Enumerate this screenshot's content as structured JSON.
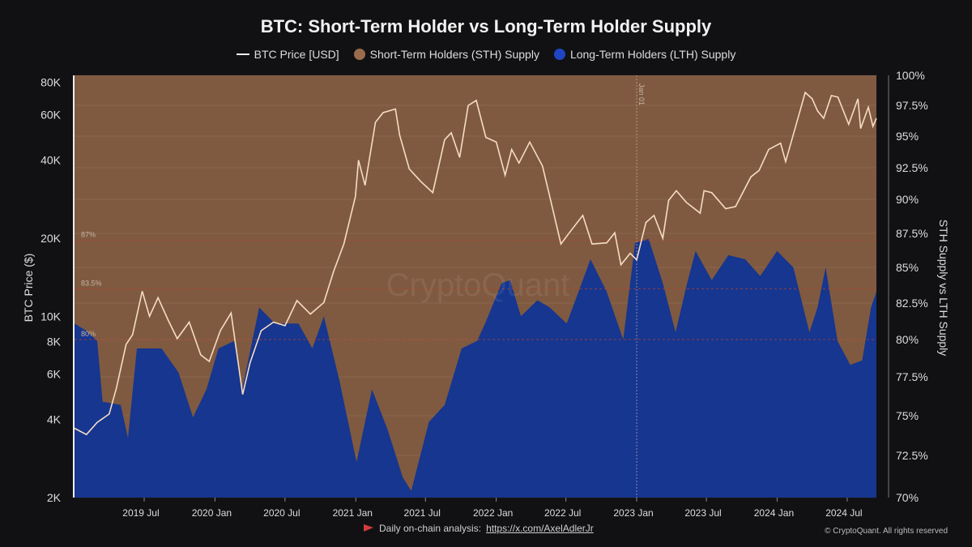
{
  "chart_data": {
    "type": "area",
    "title": "BTC: Short-Term Holder vs Long-Term Holder Supply",
    "legend": [
      "BTC Price [USD]",
      "Short-Term Holders (STH) Supply",
      "Long-Term Holders (LTH) Supply"
    ],
    "legend_placement": "top-center",
    "colors": {
      "price": "#f6dcc4",
      "sth": "#7f5a40",
      "lth": "#16368f",
      "ref_line": "#b5402f",
      "background": "#111114"
    },
    "ylabel_left": "BTC Price ($)",
    "ylabel_right": "STH Supply vs LTH Supply",
    "y_left_scale": "log",
    "y_left_ticks": [
      "2K",
      "4K",
      "6K",
      "8K",
      "10K",
      "20K",
      "40K",
      "60K",
      "80K"
    ],
    "y_left_tick_values": [
      2000,
      4000,
      6000,
      8000,
      10000,
      20000,
      40000,
      60000,
      80000
    ],
    "y_right_ticks": [
      "70%",
      "72.5%",
      "75%",
      "77.5%",
      "80%",
      "82.5%",
      "85%",
      "87.5%",
      "90%",
      "92.5%",
      "95%",
      "97.5%",
      "100%"
    ],
    "y_right_tick_values": [
      70,
      72.5,
      75,
      77.5,
      80,
      82.5,
      85,
      87.5,
      90,
      92.5,
      95,
      97.5,
      100
    ],
    "x_ticks": [
      "2019 Jul",
      "2020 Jan",
      "2020 Jul",
      "2021 Jan",
      "2021 Jul",
      "2022 Jan",
      "2022 Jul",
      "2023 Jan",
      "2023 Jul",
      "2024 Jan",
      "2024 Jul"
    ],
    "x_tick_dates": [
      "2019-07-01",
      "2020-01-01",
      "2020-07-01",
      "2021-01-01",
      "2021-07-01",
      "2022-01-01",
      "2022-07-01",
      "2023-01-01",
      "2023-07-01",
      "2024-01-01",
      "2024-07-01"
    ],
    "x_range": [
      "2019-01-01",
      "2024-09-15"
    ],
    "reference_lines": [
      {
        "label": "87%",
        "value": 87
      },
      {
        "label": "83.5%",
        "value": 83.5
      },
      {
        "label": "80%",
        "value": 80
      }
    ],
    "annotation": {
      "label": "Jan 01",
      "date": "2023-01-01"
    },
    "watermark": "CryptoQuant",
    "series": [
      {
        "name": "BTC Price [USD]",
        "axis": "left",
        "points": [
          [
            "2019-01-01",
            3700
          ],
          [
            "2019-02-01",
            3500
          ],
          [
            "2019-03-01",
            3900
          ],
          [
            "2019-04-01",
            4200
          ],
          [
            "2019-04-20",
            5300
          ],
          [
            "2019-05-15",
            7800
          ],
          [
            "2019-06-01",
            8500
          ],
          [
            "2019-06-26",
            12500
          ],
          [
            "2019-07-15",
            10000
          ],
          [
            "2019-08-06",
            11800
          ],
          [
            "2019-09-01",
            9700
          ],
          [
            "2019-09-25",
            8200
          ],
          [
            "2019-10-26",
            9500
          ],
          [
            "2019-11-25",
            7100
          ],
          [
            "2019-12-17",
            6700
          ],
          [
            "2020-01-15",
            8800
          ],
          [
            "2020-02-12",
            10300
          ],
          [
            "2020-03-13",
            5000
          ],
          [
            "2020-04-01",
            6600
          ],
          [
            "2020-04-30",
            8800
          ],
          [
            "2020-06-01",
            9500
          ],
          [
            "2020-07-01",
            9200
          ],
          [
            "2020-08-01",
            11500
          ],
          [
            "2020-09-05",
            10200
          ],
          [
            "2020-10-10",
            11300
          ],
          [
            "2020-11-05",
            15000
          ],
          [
            "2020-12-01",
            19000
          ],
          [
            "2020-12-31",
            29000
          ],
          [
            "2021-01-08",
            40000
          ],
          [
            "2021-01-25",
            32000
          ],
          [
            "2021-02-21",
            56000
          ],
          [
            "2021-03-13",
            61000
          ],
          [
            "2021-04-14",
            63000
          ],
          [
            "2021-04-25",
            50000
          ],
          [
            "2021-05-20",
            37000
          ],
          [
            "2021-06-20",
            33000
          ],
          [
            "2021-07-20",
            30000
          ],
          [
            "2021-08-20",
            48000
          ],
          [
            "2021-09-06",
            51000
          ],
          [
            "2021-09-28",
            41000
          ],
          [
            "2021-10-20",
            65000
          ],
          [
            "2021-11-10",
            68000
          ],
          [
            "2021-12-05",
            49000
          ],
          [
            "2022-01-01",
            47000
          ],
          [
            "2022-01-24",
            35000
          ],
          [
            "2022-02-10",
            44000
          ],
          [
            "2022-03-01",
            39000
          ],
          [
            "2022-03-29",
            47000
          ],
          [
            "2022-05-01",
            38000
          ],
          [
            "2022-05-20",
            29000
          ],
          [
            "2022-06-18",
            19000
          ],
          [
            "2022-07-10",
            21000
          ],
          [
            "2022-08-14",
            24500
          ],
          [
            "2022-09-07",
            19000
          ],
          [
            "2022-10-15",
            19200
          ],
          [
            "2022-11-05",
            21000
          ],
          [
            "2022-11-21",
            15800
          ],
          [
            "2022-12-15",
            17500
          ],
          [
            "2023-01-01",
            16500
          ],
          [
            "2023-01-25",
            23000
          ],
          [
            "2023-02-15",
            24500
          ],
          [
            "2023-03-10",
            20000
          ],
          [
            "2023-03-25",
            28000
          ],
          [
            "2023-04-14",
            30500
          ],
          [
            "2023-05-10",
            27500
          ],
          [
            "2023-06-15",
            25000
          ],
          [
            "2023-06-25",
            30500
          ],
          [
            "2023-07-15",
            30000
          ],
          [
            "2023-08-20",
            26000
          ],
          [
            "2023-09-15",
            26500
          ],
          [
            "2023-10-25",
            34500
          ],
          [
            "2023-11-15",
            36500
          ],
          [
            "2023-12-10",
            44000
          ],
          [
            "2024-01-10",
            46500
          ],
          [
            "2024-01-23",
            39500
          ],
          [
            "2024-02-15",
            52000
          ],
          [
            "2024-03-14",
            73000
          ],
          [
            "2024-04-01",
            69000
          ],
          [
            "2024-04-15",
            62000
          ],
          [
            "2024-05-01",
            58000
          ],
          [
            "2024-05-21",
            71000
          ],
          [
            "2024-06-07",
            70000
          ],
          [
            "2024-07-05",
            55000
          ],
          [
            "2024-07-29",
            69000
          ],
          [
            "2024-08-05",
            53000
          ],
          [
            "2024-08-25",
            64000
          ],
          [
            "2024-09-06",
            54000
          ],
          [
            "2024-09-15",
            58000
          ]
        ]
      },
      {
        "name": "Long-Term Holders (LTH) Supply",
        "axis": "right",
        "points": [
          [
            "2019-01-01",
            81.1
          ],
          [
            "2019-02-01",
            80.6
          ],
          [
            "2019-03-01",
            79.9
          ],
          [
            "2019-03-15",
            75.9
          ],
          [
            "2019-05-01",
            75.7
          ],
          [
            "2019-05-20",
            73.6
          ],
          [
            "2019-06-12",
            79.4
          ],
          [
            "2019-08-15",
            79.4
          ],
          [
            "2019-09-28",
            77.8
          ],
          [
            "2019-11-05",
            74.9
          ],
          [
            "2019-12-10",
            76.7
          ],
          [
            "2020-01-10",
            79.4
          ],
          [
            "2020-02-20",
            79.9
          ],
          [
            "2020-03-12",
            76.7
          ],
          [
            "2020-04-25",
            82.2
          ],
          [
            "2020-06-05",
            81.1
          ],
          [
            "2020-08-05",
            81.1
          ],
          [
            "2020-09-10",
            79.4
          ],
          [
            "2020-10-10",
            81.6
          ],
          [
            "2020-11-20",
            77.2
          ],
          [
            "2021-01-03",
            72.1
          ],
          [
            "2021-02-12",
            76.7
          ],
          [
            "2021-03-25",
            74.1
          ],
          [
            "2021-05-03",
            71.2
          ],
          [
            "2021-05-25",
            70.4
          ],
          [
            "2021-07-10",
            74.6
          ],
          [
            "2021-08-20",
            75.7
          ],
          [
            "2021-10-03",
            79.4
          ],
          [
            "2021-11-12",
            79.9
          ],
          [
            "2021-12-03",
            81.1
          ],
          [
            "2022-01-15",
            83.9
          ],
          [
            "2022-02-06",
            84.1
          ],
          [
            "2022-03-06",
            81.6
          ],
          [
            "2022-04-18",
            82.7
          ],
          [
            "2022-05-20",
            82.2
          ],
          [
            "2022-07-03",
            81.1
          ],
          [
            "2022-08-03",
            83.3
          ],
          [
            "2022-09-03",
            85.6
          ],
          [
            "2022-10-15",
            83.3
          ],
          [
            "2022-11-27",
            80.0
          ],
          [
            "2022-12-28",
            86.8
          ],
          [
            "2023-02-01",
            87.1
          ],
          [
            "2023-03-10",
            83.9
          ],
          [
            "2023-04-12",
            80.5
          ],
          [
            "2023-05-12",
            83.9
          ],
          [
            "2023-06-03",
            86.2
          ],
          [
            "2023-07-15",
            84.1
          ],
          [
            "2023-08-27",
            85.9
          ],
          [
            "2023-10-10",
            85.6
          ],
          [
            "2023-11-18",
            84.4
          ],
          [
            "2024-01-01",
            86.2
          ],
          [
            "2024-02-12",
            85.0
          ],
          [
            "2024-03-25",
            80.5
          ],
          [
            "2024-04-15",
            82.2
          ],
          [
            "2024-05-06",
            85.0
          ],
          [
            "2024-06-06",
            79.9
          ],
          [
            "2024-07-09",
            78.3
          ],
          [
            "2024-08-09",
            78.6
          ],
          [
            "2024-09-01",
            82.2
          ],
          [
            "2024-09-15",
            83.3
          ]
        ]
      }
    ]
  },
  "footer": {
    "text": "Daily on-chain analysis: ",
    "link": "https://x.com/AxelAdlerJr",
    "copyright": "© CryptoQuant. All rights reserved"
  }
}
